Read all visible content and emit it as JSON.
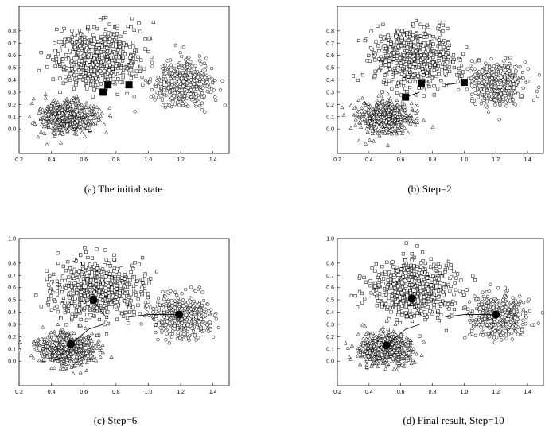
{
  "chart_data": [
    {
      "type": "scatter",
      "caption": "(a)  The initial state",
      "xlim": [
        0.2,
        1.5
      ],
      "ylim": [
        -0.2,
        1.0
      ],
      "xticks": [
        "0.2",
        "0.4",
        "0.6",
        "0.8",
        "1.0",
        "1.2",
        "1.4"
      ],
      "yticks": [
        "0.0",
        "0.1",
        "0.2",
        "0.3",
        "0.4",
        "0.5",
        "0.6",
        "0.7",
        "0.8"
      ],
      "clusters": [
        {
          "marker": "square",
          "center": [
            0.68,
            0.58
          ],
          "spread": [
            0.13,
            0.12
          ],
          "count": 620
        },
        {
          "marker": "circle",
          "center": [
            1.21,
            0.37
          ],
          "spread": [
            0.09,
            0.085
          ],
          "count": 500
        },
        {
          "marker": "triangle",
          "center": [
            0.5,
            0.1
          ],
          "spread": [
            0.085,
            0.065
          ],
          "count": 560
        }
      ],
      "centroids": [
        [
          0.72,
          0.3
        ],
        [
          0.75,
          0.36
        ],
        [
          0.88,
          0.36
        ]
      ],
      "paths": []
    },
    {
      "type": "scatter",
      "caption": "(b)  Step=2",
      "xlim": [
        0.2,
        1.5
      ],
      "ylim": [
        -0.2,
        1.0
      ],
      "xticks": [
        "0.2",
        "0.4",
        "0.6",
        "0.8",
        "1.0",
        "1.2",
        "1.4"
      ],
      "yticks": [
        "0.0",
        "0.1",
        "0.2",
        "0.3",
        "0.4",
        "0.5",
        "0.6",
        "0.7",
        "0.8"
      ],
      "clusters": [
        {
          "marker": "square",
          "center": [
            0.68,
            0.58
          ],
          "spread": [
            0.13,
            0.12
          ],
          "count": 620
        },
        {
          "marker": "circle",
          "center": [
            1.21,
            0.37
          ],
          "spread": [
            0.09,
            0.085
          ],
          "count": 500
        },
        {
          "marker": "triangle",
          "center": [
            0.5,
            0.1
          ],
          "spread": [
            0.085,
            0.065
          ],
          "count": 560
        }
      ],
      "centroids": [
        [
          0.63,
          0.26
        ],
        [
          0.73,
          0.37
        ],
        [
          1.0,
          0.38
        ]
      ],
      "paths": [
        [
          [
            0.72,
            0.3
          ],
          [
            0.63,
            0.26
          ]
        ],
        [
          [
            0.75,
            0.36
          ],
          [
            0.73,
            0.37
          ]
        ],
        [
          [
            0.88,
            0.36
          ],
          [
            1.0,
            0.38
          ]
        ]
      ]
    },
    {
      "type": "scatter",
      "caption": "(c)  Step=6",
      "xlim": [
        0.2,
        1.5
      ],
      "ylim": [
        -0.2,
        1.0
      ],
      "xticks": [
        "0.2",
        "0.4",
        "0.6",
        "0.8",
        "1.0",
        "1.2",
        "1.4"
      ],
      "yticks": [
        "0.0",
        "0.1",
        "0.2",
        "0.3",
        "0.4",
        "0.5",
        "0.6",
        "0.7",
        "0.8",
        "1.0"
      ],
      "clusters": [
        {
          "marker": "square",
          "center": [
            0.68,
            0.58
          ],
          "spread": [
            0.13,
            0.12
          ],
          "count": 620
        },
        {
          "marker": "circle",
          "center": [
            1.21,
            0.37
          ],
          "spread": [
            0.09,
            0.085
          ],
          "count": 500
        },
        {
          "marker": "triangle",
          "center": [
            0.5,
            0.1
          ],
          "spread": [
            0.085,
            0.065
          ],
          "count": 560
        }
      ],
      "centroids": [
        [
          0.52,
          0.14
        ],
        [
          0.66,
          0.5
        ],
        [
          1.19,
          0.38
        ]
      ],
      "paths": [
        [
          [
            0.72,
            0.3
          ],
          [
            0.63,
            0.26
          ],
          [
            0.52,
            0.14
          ]
        ],
        [
          [
            0.75,
            0.36
          ],
          [
            0.73,
            0.37
          ],
          [
            0.66,
            0.5
          ]
        ],
        [
          [
            0.88,
            0.36
          ],
          [
            1.0,
            0.38
          ],
          [
            1.19,
            0.38
          ]
        ]
      ]
    },
    {
      "type": "scatter",
      "caption": "(d)  Final result, Step=10",
      "xlim": [
        0.2,
        1.5
      ],
      "ylim": [
        -0.2,
        1.0
      ],
      "xticks": [
        "0.2",
        "0.4",
        "0.6",
        "0.8",
        "1.0",
        "1.2",
        "1.4"
      ],
      "yticks": [
        "0.0",
        "0.1",
        "0.2",
        "0.3",
        "0.4",
        "0.5",
        "0.6",
        "0.7",
        "0.8",
        "1.0"
      ],
      "clusters": [
        {
          "marker": "square",
          "center": [
            0.68,
            0.58
          ],
          "spread": [
            0.13,
            0.12
          ],
          "count": 620
        },
        {
          "marker": "circle",
          "center": [
            1.21,
            0.37
          ],
          "spread": [
            0.09,
            0.085
          ],
          "count": 500
        },
        {
          "marker": "triangle",
          "center": [
            0.5,
            0.1
          ],
          "spread": [
            0.085,
            0.065
          ],
          "count": 560
        }
      ],
      "centroids": [
        [
          0.51,
          0.13
        ],
        [
          0.67,
          0.51
        ],
        [
          1.2,
          0.38
        ]
      ],
      "paths": [
        [
          [
            0.72,
            0.3
          ],
          [
            0.63,
            0.26
          ],
          [
            0.52,
            0.14
          ],
          [
            0.51,
            0.13
          ]
        ],
        [
          [
            0.75,
            0.36
          ],
          [
            0.73,
            0.37
          ],
          [
            0.66,
            0.5
          ],
          [
            0.67,
            0.51
          ]
        ],
        [
          [
            0.88,
            0.36
          ],
          [
            1.0,
            0.38
          ],
          [
            1.19,
            0.38
          ],
          [
            1.2,
            0.38
          ]
        ]
      ]
    }
  ]
}
